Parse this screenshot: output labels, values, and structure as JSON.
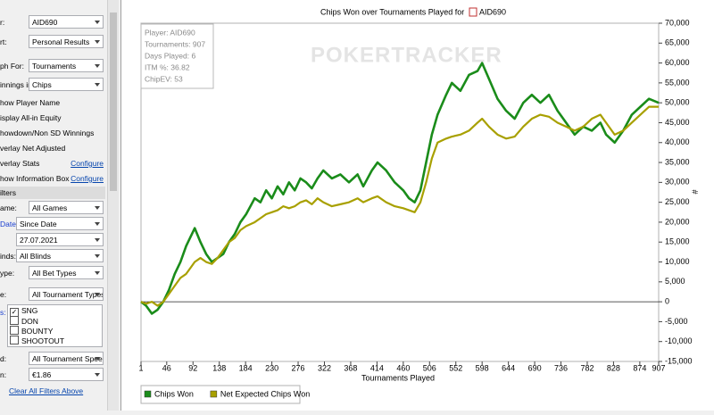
{
  "sidebar": {
    "top_rows": [
      {
        "label": "r:",
        "value": "AID690"
      },
      {
        "label": "rt:",
        "value": "Personal Results"
      },
      {
        "label": "ph For:",
        "value": "Tournaments"
      },
      {
        "label": "innings in:",
        "value": "Chips"
      }
    ],
    "options": [
      {
        "text": "how Player Name"
      },
      {
        "text": "isplay All-in Equity"
      },
      {
        "text": "howdown/Non SD Winnings"
      },
      {
        "text": "verlay Net Adjusted"
      },
      {
        "text": "verlay Stats",
        "link": "Configure"
      },
      {
        "text": "how Information Box",
        "link": "Configure"
      }
    ],
    "filters_header": "ilters",
    "filter_rows": [
      {
        "label": "ame:",
        "value": "All Games"
      },
      {
        "label": "Date:",
        "value": "Since Date"
      },
      {
        "label": "",
        "value": "27.07.2021"
      },
      {
        "label": "inds:",
        "value": "All Blinds"
      },
      {
        "label": "ype:",
        "value": "All Bet Types"
      },
      {
        "label": "e:",
        "value": "All Tournament Types"
      }
    ],
    "list_label": "s:",
    "list_items": [
      {
        "text": "SNG",
        "checked": true
      },
      {
        "text": "DON",
        "checked": false
      },
      {
        "text": "BOUNTY",
        "checked": false
      },
      {
        "text": "SHOOTOUT",
        "checked": false
      }
    ],
    "bottom_rows": [
      {
        "label": "d:",
        "value": "All Tournament Speeds"
      },
      {
        "label": "n:",
        "value": "€1.86"
      }
    ],
    "clear_link": "Clear All Filters Above"
  },
  "chart_data": {
    "type": "line",
    "title": "Chips Won over Tournaments Played for",
    "player": "AID690",
    "watermark": "POKERTRACKER",
    "info": [
      "Player: AID690",
      "Tournaments: 907",
      "Days Played: 6",
      "ITM %: 36.82",
      "ChipEV: 53"
    ],
    "x_label": "Tournaments Played",
    "y_label": "#",
    "xlim": [
      1,
      907
    ],
    "xticks": [
      1,
      46,
      92,
      138,
      184,
      230,
      276,
      322,
      368,
      414,
      460,
      506,
      552,
      598,
      644,
      690,
      736,
      782,
      828,
      874,
      907
    ],
    "ylim": [
      -15000,
      70000
    ],
    "yticks": [
      {
        "value": -15000,
        "label": "-15,000"
      },
      {
        "value": -10000,
        "label": "-10,000"
      },
      {
        "value": -5000,
        "label": "-5,000"
      },
      0,
      {
        "value": 5000,
        "label": "5,000"
      },
      {
        "value": 10000,
        "label": "10,000"
      },
      {
        "value": 15000,
        "label": "15,000"
      },
      {
        "value": 20000,
        "label": "20,000"
      },
      {
        "value": 25000,
        "label": "25,000"
      },
      {
        "value": 30000,
        "label": "30,000"
      },
      {
        "value": 35000,
        "label": "35,000"
      },
      {
        "value": 40000,
        "label": "40,000"
      },
      {
        "value": 45000,
        "label": "45,000"
      },
      {
        "value": 50000,
        "label": "50,000"
      },
      {
        "value": 55000,
        "label": "55,000"
      },
      {
        "value": 60000,
        "label": "60,000"
      },
      {
        "value": 65000,
        "label": "65,000"
      },
      {
        "value": 70000,
        "label": "70,000"
      }
    ],
    "x": [
      1,
      10,
      20,
      30,
      40,
      50,
      60,
      70,
      80,
      90,
      95,
      105,
      115,
      125,
      135,
      145,
      155,
      165,
      175,
      185,
      200,
      210,
      220,
      230,
      240,
      250,
      260,
      270,
      280,
      290,
      300,
      310,
      320,
      335,
      350,
      365,
      380,
      390,
      405,
      415,
      430,
      445,
      460,
      470,
      480,
      490,
      500,
      510,
      520,
      535,
      545,
      560,
      575,
      590,
      598,
      610,
      625,
      640,
      655,
      670,
      685,
      700,
      715,
      730,
      745,
      760,
      775,
      790,
      805,
      815,
      830,
      845,
      860,
      875,
      890,
      907
    ],
    "series": [
      {
        "name": "Chips Won",
        "color": "#1a8c1a",
        "values": [
          0,
          -1000,
          -3000,
          -2000,
          0,
          3000,
          7000,
          10000,
          14000,
          17000,
          18500,
          15000,
          12000,
          10000,
          11000,
          12000,
          15000,
          17000,
          20000,
          22000,
          26000,
          25000,
          28000,
          26000,
          29000,
          27000,
          30000,
          28000,
          31000,
          30000,
          28500,
          31000,
          33000,
          31000,
          32000,
          30000,
          32000,
          29000,
          33000,
          35000,
          33000,
          30000,
          28000,
          26000,
          25000,
          28000,
          35000,
          42000,
          47000,
          52000,
          55000,
          53000,
          57000,
          58000,
          60000,
          56000,
          51000,
          48000,
          46000,
          50000,
          52000,
          50000,
          52000,
          48000,
          45000,
          42000,
          44000,
          43000,
          45000,
          42000,
          40000,
          43000,
          47000,
          49000,
          51000,
          50000
        ]
      },
      {
        "name": "Net Expected Chips Won",
        "color": "#a8a000",
        "values": [
          0,
          -500,
          0,
          -1000,
          0,
          2000,
          4000,
          6000,
          7000,
          9000,
          10000,
          11000,
          10000,
          9500,
          11000,
          13000,
          15000,
          16000,
          18000,
          19000,
          20000,
          21000,
          22000,
          22500,
          23000,
          24000,
          23500,
          24000,
          25000,
          25500,
          24500,
          26000,
          25000,
          24000,
          24500,
          25000,
          26000,
          25000,
          26000,
          26500,
          25000,
          24000,
          23500,
          23000,
          22500,
          25000,
          30000,
          36000,
          40000,
          41000,
          41500,
          42000,
          43000,
          45000,
          46000,
          44000,
          42000,
          41000,
          41500,
          44000,
          46000,
          47000,
          46500,
          45000,
          44000,
          43000,
          44000,
          46000,
          47000,
          45000,
          42000,
          43000,
          45000,
          47000,
          49000,
          49000
        ]
      }
    ],
    "zero_line": true
  }
}
